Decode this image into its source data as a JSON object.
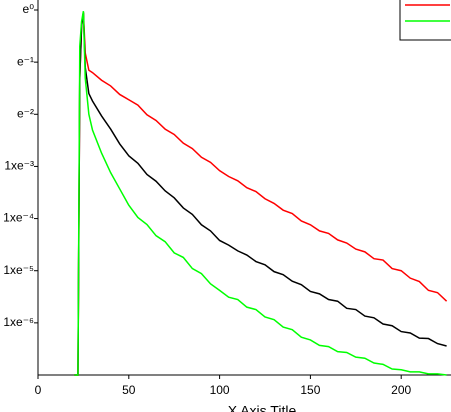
{
  "chart_data": {
    "type": "line",
    "x_label": "X Axis Title",
    "yscale": "log",
    "legend": "top-right",
    "xlim": [
      0,
      228
    ],
    "xticks": [
      0,
      50,
      100,
      150,
      200
    ],
    "ylim": [
      1e-07,
      1
    ],
    "yticks": [
      {
        "value": 1,
        "label": "e⁰"
      },
      {
        "value": 0.1,
        "label": "e⁻¹"
      },
      {
        "value": 0.01,
        "label": "e⁻²"
      },
      {
        "value": 0.001,
        "label": "1xe⁻³"
      },
      {
        "value": 0.0001,
        "label": "1xe⁻⁴"
      },
      {
        "value": 1e-05,
        "label": "1xe⁻⁵"
      },
      {
        "value": 1e-06,
        "label": "1xe⁻⁶"
      }
    ],
    "x": [
      20,
      22,
      23,
      24,
      25,
      26,
      28,
      30,
      35,
      40,
      45,
      50,
      55,
      60,
      65,
      70,
      75,
      80,
      85,
      90,
      95,
      100,
      105,
      110,
      115,
      120,
      125,
      130,
      135,
      140,
      145,
      150,
      155,
      160,
      165,
      170,
      175,
      180,
      185,
      190,
      195,
      200,
      205,
      210,
      215,
      220,
      225
    ],
    "series": [
      {
        "color": "#ff0000",
        "in_legend": true,
        "values": [
          1e-07,
          1e-07,
          0.05,
          0.5,
          0.9,
          0.15,
          0.07,
          0.063,
          0.045,
          0.035,
          0.024,
          0.019,
          0.015,
          0.0098,
          0.0076,
          0.0052,
          0.0041,
          0.0028,
          0.0022,
          0.0015,
          0.0012,
          0.00083,
          0.00064,
          0.00053,
          0.00039,
          0.00033,
          0.00024,
          0.000195,
          0.000145,
          0.000125,
          9e-05,
          7.6e-05,
          5.8e-05,
          5.2e-05,
          3.9e-05,
          3.4e-05,
          2.6e-05,
          2.3e-05,
          1.7e-05,
          1.6e-05,
          1.1e-05,
          1e-05,
          7.2e-06,
          6.2e-06,
          4.2e-06,
          3.8e-06,
          2.6e-06
        ]
      },
      {
        "color": "#000000",
        "in_legend": false,
        "values": [
          1e-07,
          1e-07,
          0.05,
          0.5,
          0.9,
          0.08,
          0.025,
          0.018,
          0.0093,
          0.0052,
          0.0027,
          0.0016,
          0.00115,
          0.0007,
          0.00052,
          0.00034,
          0.00025,
          0.00016,
          0.00012,
          7.6e-05,
          5.8e-05,
          3.8e-05,
          3.1e-05,
          2.4e-05,
          2e-05,
          1.5e-05,
          1.3e-05,
          9.6e-06,
          8.4e-06,
          6.3e-06,
          5.4e-06,
          4e-06,
          3.6e-06,
          2.8e-06,
          2.6e-06,
          1.9e-06,
          1.8e-06,
          1.35e-06,
          1.25e-06,
          9.5e-07,
          8.8e-07,
          6.8e-07,
          6.4e-07,
          5.1e-07,
          5e-07,
          4e-07,
          3.6e-07
        ]
      },
      {
        "color": "#00ff00",
        "in_legend": true,
        "values": [
          1e-07,
          1e-07,
          0.2,
          0.6,
          0.95,
          0.05,
          0.01,
          0.005,
          0.0018,
          0.00076,
          0.00037,
          0.00018,
          0.000105,
          7.7e-05,
          4.7e-05,
          3.6e-05,
          2.2e-05,
          1.8e-05,
          1.1e-05,
          8.8e-06,
          5.6e-06,
          4.2e-06,
          3.1e-06,
          2.8e-06,
          2e-06,
          1.8e-06,
          1.3e-06,
          1.15e-06,
          8.3e-07,
          7.4e-07,
          5.3e-07,
          4.7e-07,
          3.7e-07,
          3.5e-07,
          2.8e-07,
          2.7e-07,
          2.2e-07,
          2.1e-07,
          1.7e-07,
          1.6e-07,
          1.3e-07,
          1.26e-07,
          1.15e-07,
          1.15e-07,
          1.05e-07,
          1.05e-07,
          1e-07
        ]
      }
    ]
  }
}
